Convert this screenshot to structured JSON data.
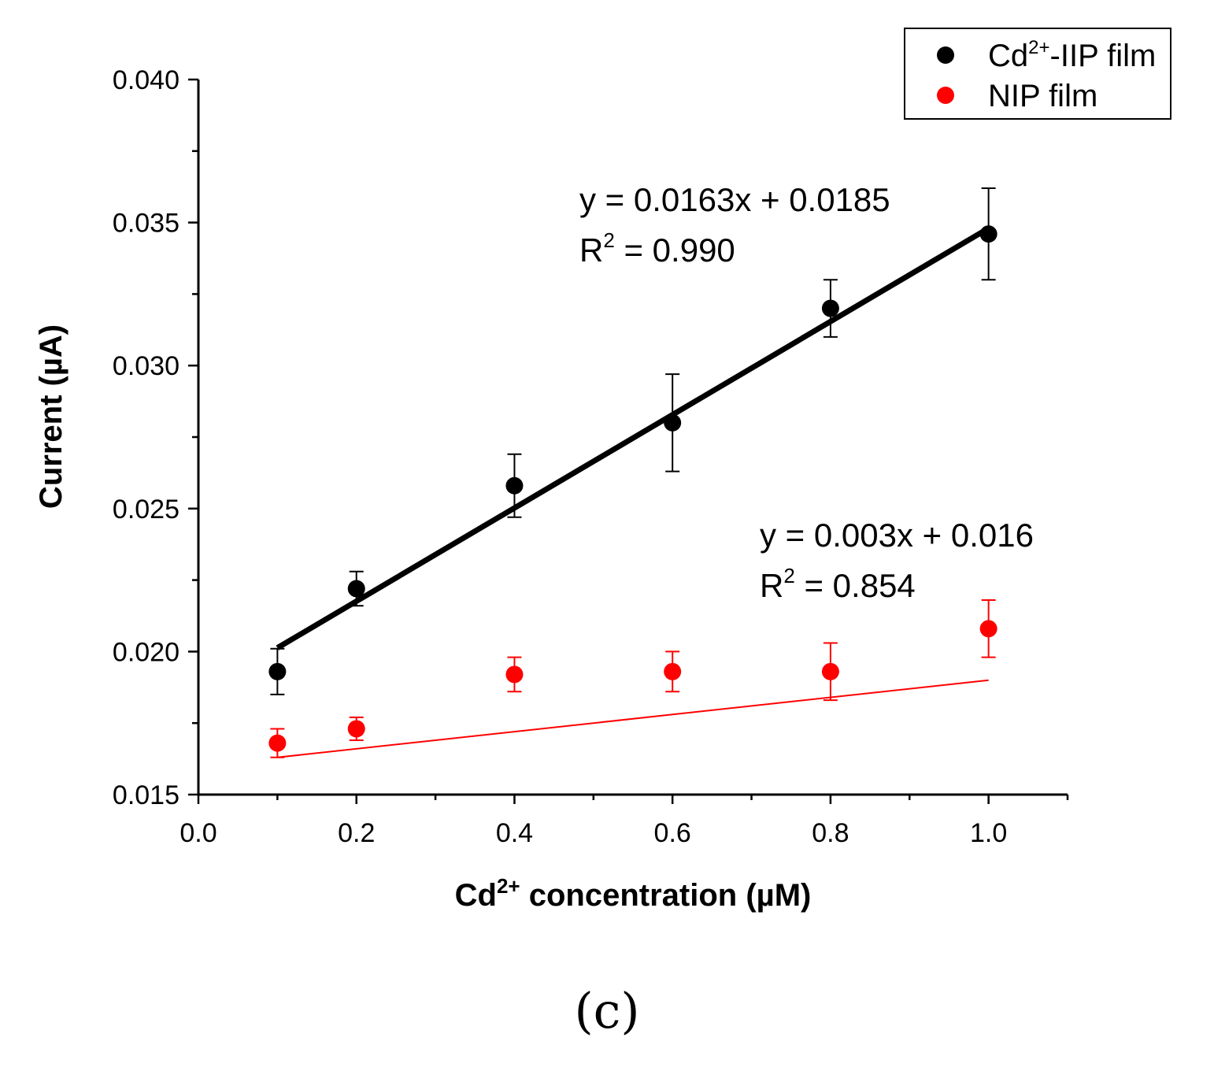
{
  "chart_data": {
    "type": "scatter",
    "xlabel_parts": [
      "Cd",
      "2+",
      " concentration (µM)"
    ],
    "ylabel": "Current (µA)",
    "xlim": [
      0.0,
      1.1
    ],
    "ylim": [
      0.015,
      0.04
    ],
    "x_ticks": [
      0.0,
      0.2,
      0.4,
      0.6,
      0.8,
      1.0
    ],
    "x_tick_labels": [
      "0.0",
      "0.2",
      "0.4",
      "0.6",
      "0.8",
      "1.0"
    ],
    "y_ticks": [
      0.015,
      0.02,
      0.025,
      0.03,
      0.035,
      0.04
    ],
    "y_tick_labels": [
      "0.015",
      "0.020",
      "0.025",
      "0.030",
      "0.035",
      "0.040"
    ],
    "panel_label": "(c)",
    "legend_position": "top-right",
    "series": [
      {
        "name_parts": [
          "Cd",
          "2+",
          "-IIP film"
        ],
        "color": "#000000",
        "x": [
          0.1,
          0.2,
          0.4,
          0.6,
          0.8,
          1.0
        ],
        "y": [
          0.0193,
          0.0222,
          0.0258,
          0.028,
          0.032,
          0.0346
        ],
        "error": [
          0.0008,
          0.0006,
          0.0011,
          0.0017,
          0.001,
          0.0016
        ],
        "fit": {
          "slope": 0.0163,
          "intercept": 0.0185,
          "x_range": [
            0.1,
            1.0
          ]
        },
        "equation": "y = 0.0163x + 0.0185",
        "r2_prefix": "R",
        "r2_sup": "2",
        "r2_value": " = 0.990"
      },
      {
        "name_parts": [
          "NIP film"
        ],
        "color": "#ff0000",
        "x": [
          0.1,
          0.2,
          0.4,
          0.6,
          0.8,
          1.0
        ],
        "y": [
          0.0168,
          0.0173,
          0.0192,
          0.0193,
          0.0193,
          0.0208
        ],
        "error": [
          0.0005,
          0.0004,
          0.0006,
          0.0007,
          0.001,
          0.001
        ],
        "fit": {
          "slope": 0.003,
          "intercept": 0.016,
          "x_range": [
            0.1,
            1.0
          ]
        },
        "equation": "y = 0.003x + 0.016",
        "r2_prefix": "R",
        "r2_sup": "2",
        "r2_value": " = 0.854"
      }
    ]
  }
}
